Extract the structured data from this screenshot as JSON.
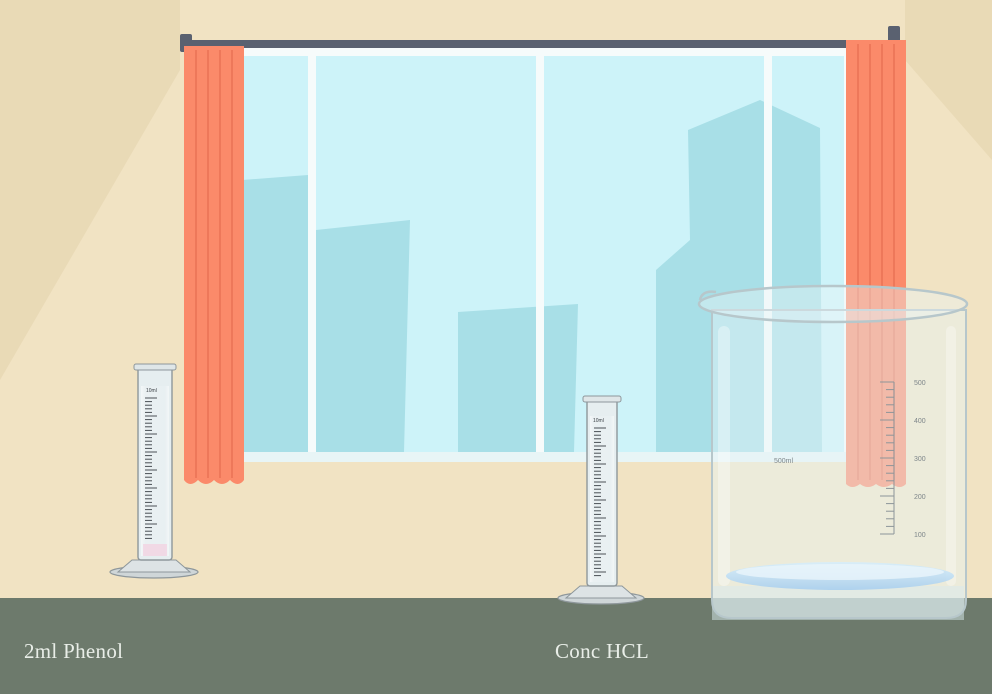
{
  "scene": {
    "colors": {
      "wall": "#f1e3c3",
      "wall_shadow": "#e4d2ad",
      "floor": "#6d7a6c",
      "window_glass": "#cdf3f9",
      "window_frame": "#f6fbfb",
      "buildings": "#a8dfe7",
      "curtain": "#fb8a6a",
      "curtain_rod": "#5a6170"
    },
    "labels": {
      "left": "2ml Phenol",
      "right": "Conc HCL"
    },
    "beaker": {
      "capacity_label": "500ml",
      "scale_marks": [
        "500",
        "400",
        "300",
        "200",
        "100"
      ]
    },
    "cylinders": [
      {
        "name": "tall-cylinder",
        "top_label": "10ml"
      },
      {
        "name": "short-cylinder",
        "top_label": "10ml"
      }
    ]
  }
}
